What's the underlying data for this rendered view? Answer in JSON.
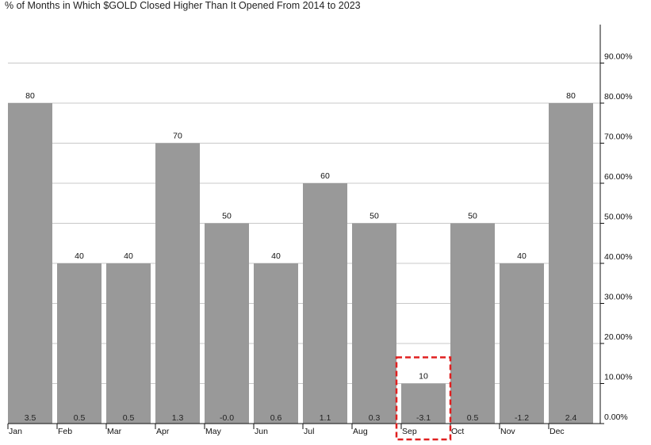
{
  "title": "% of Months in Which $GOLD Closed Higher Than It Opened From 2014 to 2023",
  "colors": {
    "bar": "#999999",
    "grid": "#c8c8c8",
    "axis": "#111111",
    "highlight": "#e02020"
  },
  "chart_data": {
    "type": "bar",
    "title": "% of Months in Which $GOLD Closed Higher Than It Opened From 2014 to 2023",
    "categories": [
      "Jan",
      "Feb",
      "Mar",
      "Apr",
      "May",
      "Jun",
      "Jul",
      "Aug",
      "Sep",
      "Oct",
      "Nov",
      "Dec"
    ],
    "series": [
      {
        "values": [
          80,
          40,
          40,
          70,
          50,
          40,
          60,
          50,
          10,
          50,
          40,
          80
        ],
        "labels": [
          "80",
          "40",
          "40",
          "70",
          "50",
          "40",
          "60",
          "50",
          "10",
          "50",
          "40",
          "80"
        ]
      }
    ],
    "bottom_labels": [
      "3.5",
      "0.5",
      "0.5",
      "1.3",
      "-0.0",
      "0.6",
      "1.1",
      "0.3",
      "-3.1",
      "0.5",
      "-1.2",
      "2.4"
    ],
    "ylim": [
      0,
      100
    ],
    "yticks": [
      "0.00%",
      "10.00%",
      "20.00%",
      "30.00%",
      "40.00%",
      "50.00%",
      "60.00%",
      "70.00%",
      "80.00%",
      "90.00%"
    ],
    "yaxis_position": "right",
    "grid": true,
    "highlighted_category": "Sep",
    "xlabel": "",
    "ylabel": ""
  }
}
